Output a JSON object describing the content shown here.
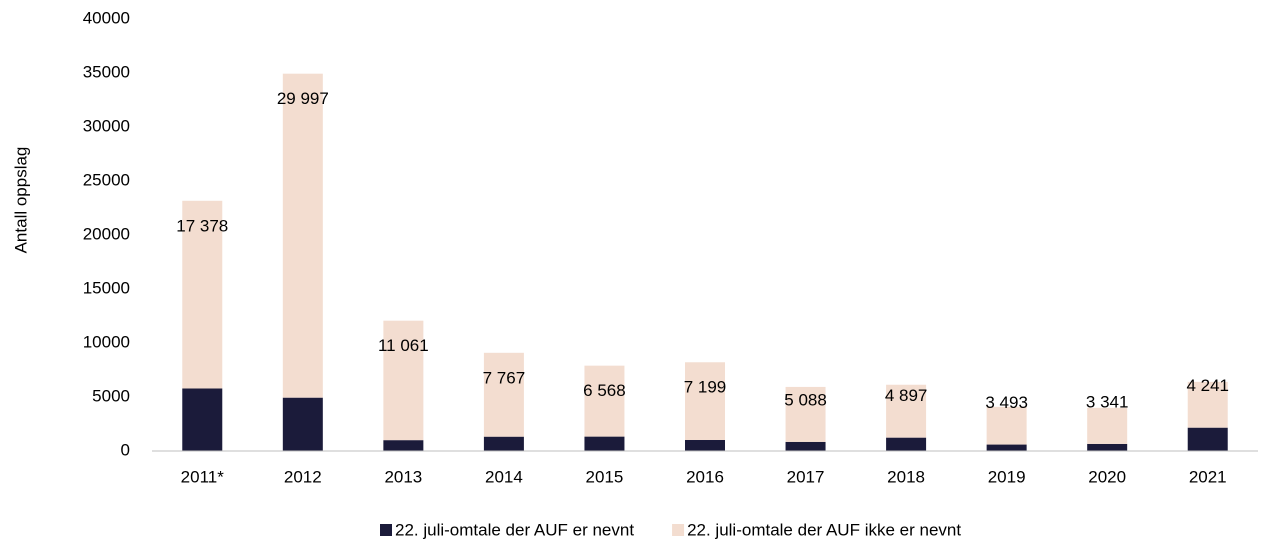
{
  "chart_data": {
    "type": "stacked_bar",
    "ylabel": "Antall oppslag",
    "categories": [
      "2011*",
      "2012",
      "2013",
      "2014",
      "2015",
      "2016",
      "2017",
      "2018",
      "2019",
      "2020",
      "2021"
    ],
    "series": [
      {
        "name": "22. juli-omtale der AUF er nevnt",
        "color": "#1b1b3a",
        "values": [
          5790,
          4939,
          1005,
          1326,
          1334,
          1018,
          845,
          1238,
          597,
          657,
          2161
        ]
      },
      {
        "name": "22. juli-omtale der AUF ikke er nevnt",
        "color": "#f3ddd0",
        "values": [
          17378,
          29997,
          11061,
          7767,
          6568,
          7199,
          5088,
          4897,
          3493,
          3341,
          4241
        ],
        "value_labels": [
          "17 378",
          "29 997",
          "11 061",
          "7 767",
          "6 568",
          "7 199",
          "5 088",
          "4 897",
          "3 493",
          "3 341",
          "4 241"
        ]
      }
    ],
    "ylim": [
      0,
      40000
    ],
    "yticks": [
      0,
      5000,
      10000,
      15000,
      20000,
      25000,
      30000,
      35000,
      40000
    ],
    "legend": "bottom"
  }
}
